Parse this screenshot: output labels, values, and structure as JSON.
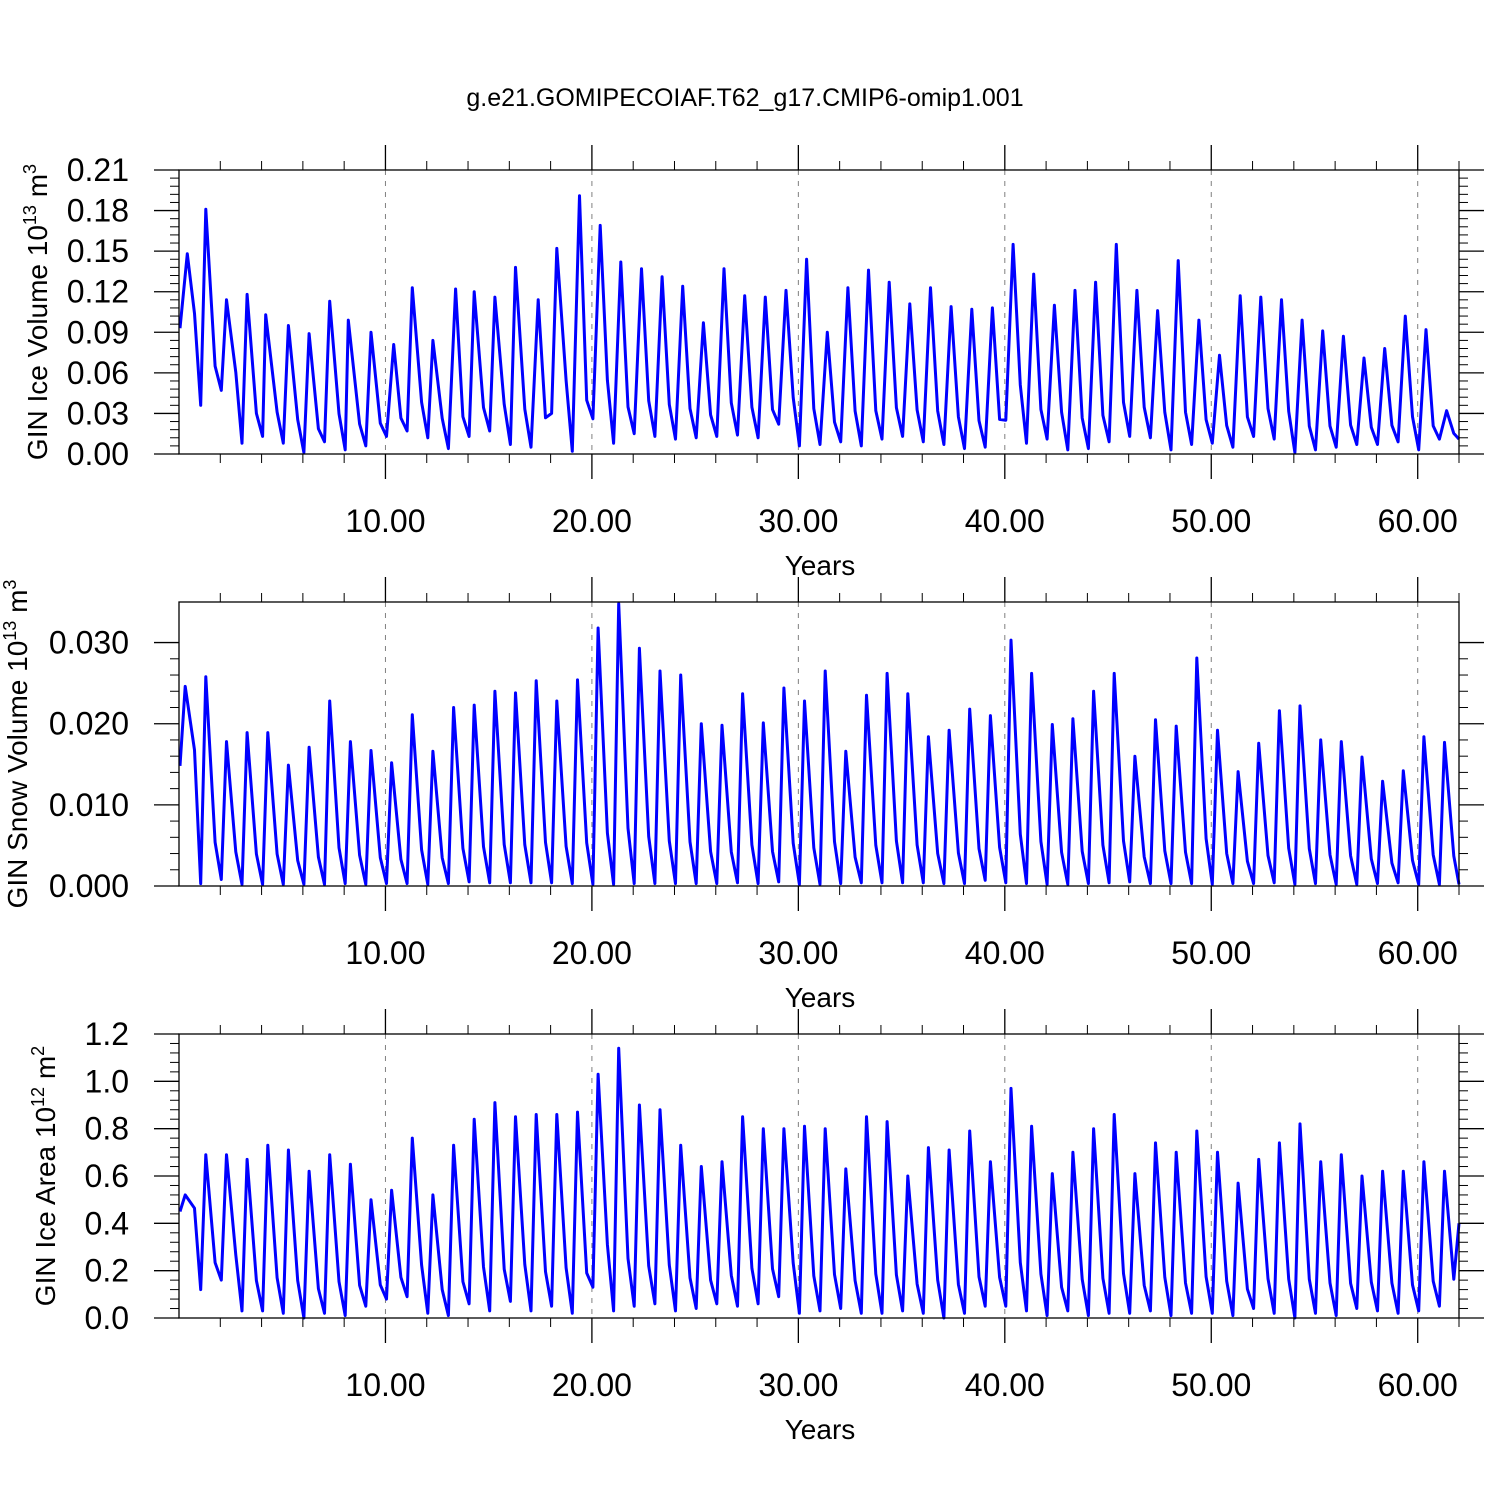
{
  "title": "g.e21.GOMIPECOIAF.T62_g17.CMIP6-omip1.001",
  "colors": {
    "series": "#0000ff",
    "axis": "#000000",
    "grid": "#808080"
  },
  "chart_data": [
    {
      "type": "line",
      "title": "",
      "xlabel": "Years",
      "ylabel": {
        "text": "GIN Ice Volume 10",
        "exp": "13",
        "unit": " m",
        "unit_exp": "3"
      },
      "xlim": [
        0,
        62
      ],
      "ylim": [
        0,
        0.21
      ],
      "xticks": [
        10,
        20,
        30,
        40,
        50,
        60
      ],
      "xtick_labels": [
        "10.00",
        "20.00",
        "30.00",
        "40.00",
        "50.00",
        "60.00"
      ],
      "yticks": [
        0,
        0.03,
        0.06,
        0.09,
        0.12,
        0.15,
        0.18,
        0.21
      ],
      "ytick_labels": [
        "0.00",
        "0.03",
        "0.06",
        "0.09",
        "0.12",
        "0.15",
        "0.18",
        "0.21"
      ],
      "grid": "vertical dashed at major x ticks",
      "series": [
        {
          "peak_x": [
            0.4,
            1.3,
            2.3,
            3.3,
            4.2,
            5.3,
            6.3,
            7.3,
            8.2,
            9.3,
            10.4,
            11.3,
            12.3,
            13.4,
            14.3,
            15.3,
            16.3,
            17.4,
            18.3,
            19.4,
            20.4,
            21.4,
            22.4,
            23.4,
            24.4,
            25.4,
            26.4,
            27.4,
            28.4,
            29.4,
            30.4,
            31.4,
            32.4,
            33.4,
            34.4,
            35.4,
            36.4,
            37.4,
            38.4,
            39.4,
            40.4,
            41.4,
            42.4,
            43.4,
            44.4,
            45.4,
            46.4,
            47.4,
            48.4,
            49.4,
            50.4,
            51.4,
            52.4,
            53.4,
            54.4,
            55.4,
            56.4,
            57.4,
            58.4,
            59.4,
            60.4,
            61.4
          ],
          "peak_y": [
            0.148,
            0.181,
            0.114,
            0.118,
            0.103,
            0.095,
            0.089,
            0.113,
            0.099,
            0.09,
            0.081,
            0.123,
            0.084,
            0.122,
            0.12,
            0.116,
            0.138,
            0.114,
            0.152,
            0.191,
            0.169,
            0.142,
            0.137,
            0.131,
            0.124,
            0.097,
            0.137,
            0.117,
            0.116,
            0.121,
            0.144,
            0.09,
            0.123,
            0.136,
            0.127,
            0.111,
            0.123,
            0.109,
            0.107,
            0.108,
            0.155,
            0.133,
            0.11,
            0.121,
            0.127,
            0.155,
            0.121,
            0.106,
            0.143,
            0.099,
            0.073,
            0.117,
            0.116,
            0.114,
            0.099,
            0.091,
            0.087,
            0.071,
            0.078,
            0.102,
            0.092,
            0.032
          ],
          "trough_y": [
            0.093,
            0.036,
            0.047,
            0.008,
            0.013,
            0.008,
            0.001,
            0.009,
            0.003,
            0.006,
            0.013,
            0.017,
            0.012,
            0.004,
            0.013,
            0.017,
            0.007,
            0.005,
            0.03,
            0.002,
            0.026,
            0.008,
            0.015,
            0.013,
            0.011,
            0.012,
            0.013,
            0.014,
            0.012,
            0.022,
            0.006,
            0.007,
            0.009,
            0.006,
            0.011,
            0.013,
            0.009,
            0.007,
            0.004,
            0.005,
            0.025,
            0.008,
            0.011,
            0.003,
            0.004,
            0.009,
            0.013,
            0.012,
            0.003,
            0.007,
            0.008,
            0.005,
            0.013,
            0.011,
            0.001,
            0.003,
            0.005,
            0.007,
            0.007,
            0.009,
            0.003,
            0.011
          ]
        }
      ]
    },
    {
      "type": "line",
      "title": "",
      "xlabel": "Years",
      "ylabel": {
        "text": "GIN Snow Volume 10",
        "exp": "13",
        "unit": " m",
        "unit_exp": "3"
      },
      "xlim": [
        0,
        62
      ],
      "ylim": [
        0,
        0.035
      ],
      "xticks": [
        10,
        20,
        30,
        40,
        50,
        60
      ],
      "xtick_labels": [
        "10.00",
        "20.00",
        "30.00",
        "40.00",
        "50.00",
        "60.00"
      ],
      "yticks": [
        0,
        0.01,
        0.02,
        0.03
      ],
      "ytick_labels": [
        "0.000",
        "0.010",
        "0.020",
        "0.030"
      ],
      "grid": "vertical dashed at major x ticks",
      "series": [
        {
          "peak_x": [
            0.3,
            1.3,
            2.3,
            3.3,
            4.3,
            5.3,
            6.3,
            7.3,
            8.3,
            9.3,
            10.3,
            11.3,
            12.3,
            13.3,
            14.3,
            15.3,
            16.3,
            17.3,
            18.3,
            19.3,
            20.3,
            21.3,
            22.3,
            23.3,
            24.3,
            25.3,
            26.3,
            27.3,
            28.3,
            29.3,
            30.3,
            31.3,
            32.3,
            33.3,
            34.3,
            35.3,
            36.3,
            37.3,
            38.3,
            39.3,
            40.3,
            41.3,
            42.3,
            43.3,
            44.3,
            45.3,
            46.3,
            47.3,
            48.3,
            49.3,
            50.3,
            51.3,
            52.3,
            53.3,
            54.3,
            55.3,
            56.3,
            57.3,
            58.3,
            59.3,
            60.3,
            61.3
          ],
          "peak_y": [
            0.0246,
            0.0258,
            0.0178,
            0.0189,
            0.0189,
            0.0149,
            0.0171,
            0.0228,
            0.0178,
            0.0167,
            0.0152,
            0.0211,
            0.0166,
            0.022,
            0.0223,
            0.024,
            0.0238,
            0.0253,
            0.0228,
            0.0254,
            0.0318,
            0.0348,
            0.0293,
            0.0265,
            0.026,
            0.02,
            0.0198,
            0.0237,
            0.0201,
            0.0244,
            0.0228,
            0.0265,
            0.0166,
            0.0235,
            0.0262,
            0.0237,
            0.0184,
            0.0192,
            0.0218,
            0.021,
            0.0303,
            0.0262,
            0.0199,
            0.0206,
            0.024,
            0.0262,
            0.016,
            0.0205,
            0.0197,
            0.0281,
            0.0192,
            0.0141,
            0.0176,
            0.0216,
            0.0222,
            0.018,
            0.0178,
            0.0159,
            0.0129,
            0.0142,
            0.0184,
            0.0177
          ],
          "trough_y": [
            0.0148,
            0.0003,
            0.0008,
            0.0002,
            0.0002,
            0.0002,
            0.0002,
            0.0002,
            0.0003,
            0.0002,
            0.0003,
            0.0003,
            0.0002,
            0.0003,
            0.0005,
            0.0004,
            0.0004,
            0.0004,
            0.0004,
            0.0003,
            0.0002,
            0.0002,
            0.0003,
            0.0003,
            0.0003,
            0.0003,
            0.0003,
            0.0004,
            0.0003,
            0.0005,
            0.0002,
            0.0002,
            0.0003,
            0.0004,
            0.0004,
            0.0004,
            0.0004,
            0.0003,
            0.0003,
            0.0007,
            0.0004,
            0.0003,
            0.0002,
            0.0002,
            0.0003,
            0.0004,
            0.0005,
            0.0003,
            0.0003,
            0.0003,
            0.0002,
            0.0003,
            0.0003,
            0.0004,
            0.0002,
            0.0003,
            0.0002,
            0.0002,
            0.0003,
            0.0004,
            0.0002,
            0.0002
          ]
        }
      ]
    },
    {
      "type": "line",
      "title": "",
      "xlabel": "Years",
      "ylabel": {
        "text": "GIN Ice Area 10",
        "exp": "12",
        "unit": " m",
        "unit_exp": "2"
      },
      "xlim": [
        0,
        62
      ],
      "ylim": [
        0,
        1.2
      ],
      "xticks": [
        10,
        20,
        30,
        40,
        50,
        60
      ],
      "xtick_labels": [
        "10.00",
        "20.00",
        "30.00",
        "40.00",
        "50.00",
        "60.00"
      ],
      "yticks": [
        0,
        0.2,
        0.4,
        0.6,
        0.8,
        1.0,
        1.2
      ],
      "ytick_labels": [
        "0.0",
        "0.2",
        "0.4",
        "0.6",
        "0.8",
        "1.0",
        "1.2"
      ],
      "grid": "vertical dashed at major x ticks",
      "series": [
        {
          "peak_x": [
            0.3,
            1.3,
            2.3,
            3.3,
            4.3,
            5.3,
            6.3,
            7.3,
            8.3,
            9.3,
            10.3,
            11.3,
            12.3,
            13.3,
            14.3,
            15.3,
            16.3,
            17.3,
            18.3,
            19.3,
            20.3,
            21.3,
            22.3,
            23.3,
            24.3,
            25.3,
            26.3,
            27.3,
            28.3,
            29.3,
            30.3,
            31.3,
            32.3,
            33.3,
            34.3,
            35.3,
            36.3,
            37.3,
            38.3,
            39.3,
            40.3,
            41.3,
            42.3,
            43.3,
            44.3,
            45.3,
            46.3,
            47.3,
            48.3,
            49.3,
            50.3,
            51.3,
            52.3,
            53.3,
            54.3,
            55.3,
            56.3,
            57.3,
            58.3,
            59.3,
            60.3,
            61.3
          ],
          "peak_y": [
            0.52,
            0.69,
            0.69,
            0.67,
            0.73,
            0.71,
            0.62,
            0.69,
            0.65,
            0.5,
            0.54,
            0.76,
            0.52,
            0.73,
            0.84,
            0.91,
            0.85,
            0.86,
            0.86,
            0.87,
            1.03,
            1.14,
            0.9,
            0.88,
            0.73,
            0.64,
            0.66,
            0.85,
            0.8,
            0.8,
            0.81,
            0.8,
            0.63,
            0.85,
            0.83,
            0.6,
            0.72,
            0.71,
            0.79,
            0.66,
            0.97,
            0.81,
            0.61,
            0.7,
            0.8,
            0.86,
            0.61,
            0.74,
            0.7,
            0.79,
            0.7,
            0.57,
            0.67,
            0.74,
            0.82,
            0.66,
            0.69,
            0.6,
            0.62,
            0.62,
            0.66,
            0.62
          ],
          "trough_y": [
            0.45,
            0.12,
            0.16,
            0.03,
            0.03,
            0.02,
            0.0,
            0.02,
            0.01,
            0.05,
            0.08,
            0.09,
            0.02,
            0.01,
            0.06,
            0.03,
            0.07,
            0.03,
            0.05,
            0.02,
            0.13,
            0.03,
            0.05,
            0.06,
            0.03,
            0.04,
            0.06,
            0.05,
            0.06,
            0.09,
            0.02,
            0.03,
            0.04,
            0.02,
            0.02,
            0.03,
            0.02,
            0.0,
            0.02,
            0.05,
            0.05,
            0.03,
            0.01,
            0.03,
            0.01,
            0.02,
            0.02,
            0.03,
            0.01,
            0.02,
            0.02,
            0.01,
            0.04,
            0.02,
            0.0,
            0.02,
            0.01,
            0.04,
            0.03,
            0.02,
            0.03,
            0.05
          ],
          "end_y": 0.4
        }
      ]
    }
  ]
}
